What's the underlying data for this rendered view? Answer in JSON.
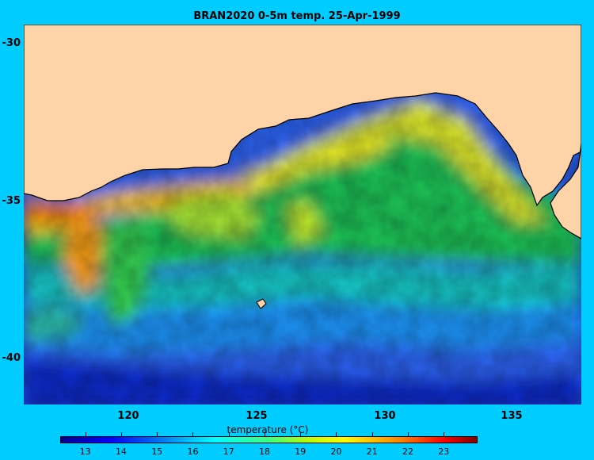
{
  "title": "BRAN2020 0-5m temp. 25-Apr-1999",
  "colors": {
    "background": "#00ccff",
    "land": "#ffd3a8",
    "coast": "#000000"
  },
  "map": {
    "y_ticks": [
      "-30",
      "-35",
      "-40"
    ],
    "x_ticks": [
      "120",
      "125",
      "130",
      "135"
    ]
  },
  "colorbar": {
    "label": "temperature (°C)",
    "ticks": [
      "13",
      "14",
      "15",
      "16",
      "17",
      "18",
      "19",
      "20",
      "21",
      "22",
      "23"
    ],
    "colormap": "jet",
    "range": [
      12.3,
      23.9
    ]
  }
}
